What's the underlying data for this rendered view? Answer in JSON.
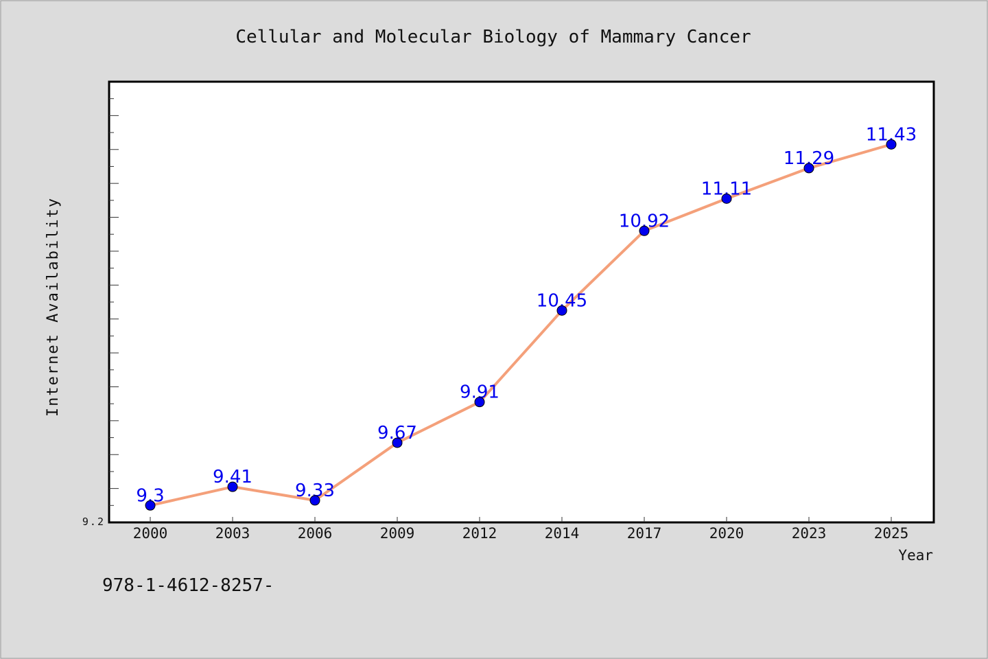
{
  "chart_data": {
    "type": "line",
    "title": "Cellular and Molecular Biology of Mammary Cancer",
    "xlabel": "Year",
    "ylabel": "Internet Availability",
    "categories": [
      "2000",
      "2003",
      "2006",
      "2009",
      "2012",
      "2014",
      "2017",
      "2020",
      "2023",
      "2025"
    ],
    "series": [
      {
        "values": [
          9.3,
          9.41,
          9.33,
          9.67,
          9.91,
          10.45,
          10.92,
          11.11,
          11.29,
          11.43
        ]
      }
    ],
    "data_labels": [
      "9.3",
      "9.41",
      "9.33",
      "9.67",
      "9.91",
      "10.45",
      "10.92",
      "11.11",
      "11.29",
      "11.43"
    ],
    "ylim": [
      9.2,
      11.8
    ],
    "y_min_label": "9.2",
    "grid": false,
    "legend": "none",
    "colors": {
      "background": "#dcdcdc",
      "plot_background": "#ffffff",
      "line": "#f4a07a",
      "marker": "#0000ee",
      "data_label": "#0000ee"
    }
  },
  "footer_text": "978-1-4612-8257-"
}
